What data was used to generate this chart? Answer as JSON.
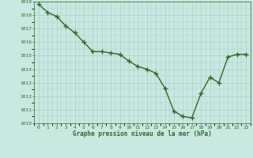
{
  "x": [
    0,
    1,
    2,
    3,
    4,
    5,
    6,
    7,
    8,
    9,
    10,
    11,
    12,
    13,
    14,
    15,
    16,
    17,
    18,
    19,
    20,
    21,
    22,
    23
  ],
  "y": [
    1018.8,
    1018.2,
    1017.9,
    1017.2,
    1016.7,
    1016.0,
    1015.3,
    1015.3,
    1015.2,
    1015.1,
    1014.6,
    1014.2,
    1014.0,
    1013.7,
    1012.6,
    1010.9,
    1010.5,
    1010.4,
    1012.2,
    1013.4,
    1013.0,
    1014.9,
    1015.1,
    1015.1
  ],
  "line_color": "#2d6a2d",
  "marker": "+",
  "marker_color": "#2d6a2d",
  "bg_color": "#c8e8e0",
  "grid_color": "#a8cec8",
  "xlabel": "Graphe pression niveau de la mer (hPa)",
  "xlabel_color": "#2d6a2d",
  "tick_color": "#2d6a2d",
  "ylim": [
    1010,
    1019
  ],
  "xlim": [
    -0.5,
    23.5
  ],
  "yticks": [
    1010,
    1011,
    1012,
    1013,
    1014,
    1015,
    1016,
    1017,
    1018,
    1019
  ],
  "xticks": [
    0,
    1,
    2,
    3,
    4,
    5,
    6,
    7,
    8,
    9,
    10,
    11,
    12,
    13,
    14,
    15,
    16,
    17,
    18,
    19,
    20,
    21,
    22,
    23
  ],
  "linewidth": 1.0,
  "markersize": 4
}
